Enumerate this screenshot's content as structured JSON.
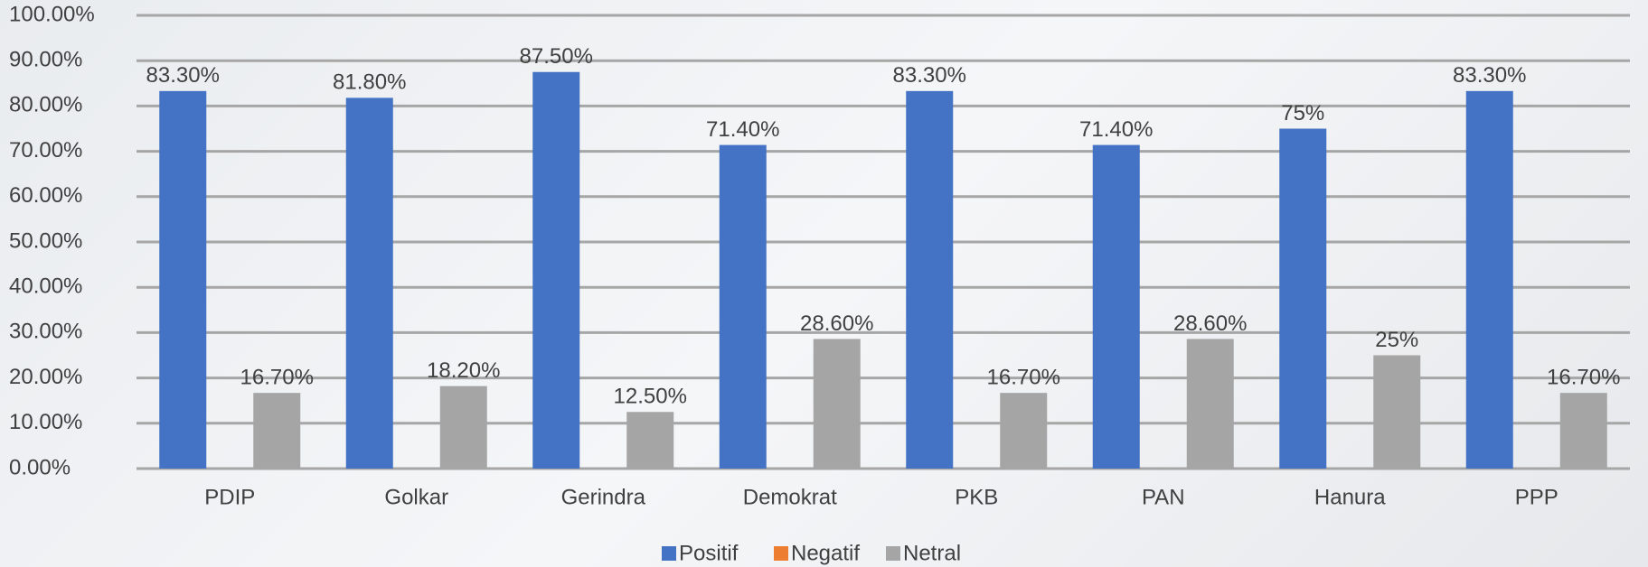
{
  "chart_data": {
    "type": "bar",
    "categories": [
      "PDIP",
      "Golkar",
      "Gerindra",
      "Demokrat",
      "PKB",
      "PAN",
      "Hanura",
      "PPP"
    ],
    "series": [
      {
        "name": "Positif",
        "color": "#4472c4",
        "values": [
          83.3,
          81.8,
          87.5,
          71.4,
          83.3,
          71.4,
          75,
          83.3
        ],
        "value_labels": [
          "83.30%",
          "81.80%",
          "87.50%",
          "71.40%",
          "83.30%",
          "71.40%",
          "75%",
          "83.30%"
        ]
      },
      {
        "name": "Negatif",
        "color": "#ed7d31",
        "values": [
          0,
          0,
          0,
          0,
          0,
          0,
          0,
          0
        ]
      },
      {
        "name": "Netral",
        "color": "#a5a5a5",
        "values": [
          16.7,
          18.2,
          12.5,
          28.6,
          16.7,
          28.6,
          25,
          16.7
        ],
        "value_labels": [
          "16.70%",
          "18.20%",
          "12.50%",
          "28.60%",
          "16.70%",
          "28.60%",
          "25%",
          "16.70%"
        ]
      }
    ],
    "ylim": [
      0,
      100
    ],
    "yticks": [
      {
        "value": 0,
        "label": "0.00%"
      },
      {
        "value": 10,
        "label": "10.00%"
      },
      {
        "value": 20,
        "label": "20.00%"
      },
      {
        "value": 30,
        "label": "30.00%"
      },
      {
        "value": 40,
        "label": "40.00%"
      },
      {
        "value": 50,
        "label": "50.00%"
      },
      {
        "value": 60,
        "label": "60.00%"
      },
      {
        "value": 70,
        "label": "70.00%"
      },
      {
        "value": 80,
        "label": "80.00%"
      },
      {
        "value": 90,
        "label": "90.00%"
      },
      {
        "value": 100,
        "label": "100.00%"
      }
    ],
    "grid": true,
    "legend": "bottom"
  }
}
